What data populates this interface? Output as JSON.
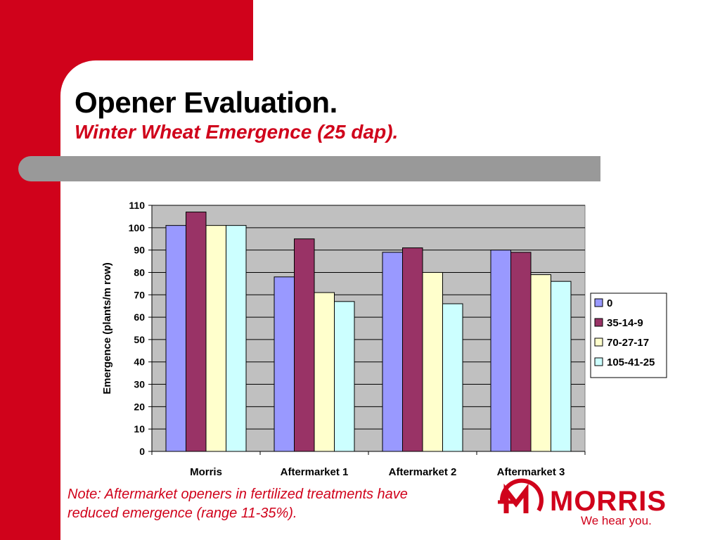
{
  "slide": {
    "title": "Opener Evaluation.",
    "subtitle": "Winter Wheat Emergence (25 dap).",
    "note_line1": "Note: Aftermarket openers in fertilized treatments have",
    "note_line2": "reduced emergence (range 11-35%)."
  },
  "logo": {
    "wordmark": "MORRIS",
    "tagline": "We hear you.",
    "color": "#d0021b"
  },
  "theme": {
    "accent": "#d0021b",
    "band_gray": "#999999",
    "plot_bg": "#c0c0c0"
  },
  "chart_data": {
    "type": "bar",
    "title": "",
    "xlabel": "",
    "ylabel": "Emergence (plants/m row)",
    "ylim": [
      0,
      110
    ],
    "yticks": [
      0,
      10,
      20,
      30,
      40,
      50,
      60,
      70,
      80,
      90,
      100,
      110
    ],
    "categories": [
      "Morris",
      "Aftermarket 1",
      "Aftermarket 2",
      "Aftermarket 3"
    ],
    "series": [
      {
        "name": "0",
        "color": "#9999ff",
        "values": [
          101,
          78,
          89,
          90
        ]
      },
      {
        "name": "35-14-9",
        "color": "#993366",
        "values": [
          107,
          95,
          91,
          89
        ]
      },
      {
        "name": "70-27-17",
        "color": "#ffffcc",
        "values": [
          101,
          71,
          80,
          79
        ]
      },
      {
        "name": "105-41-25",
        "color": "#ccffff",
        "values": [
          101,
          67,
          66,
          76
        ]
      }
    ],
    "grid": true,
    "legend_position": "right"
  }
}
